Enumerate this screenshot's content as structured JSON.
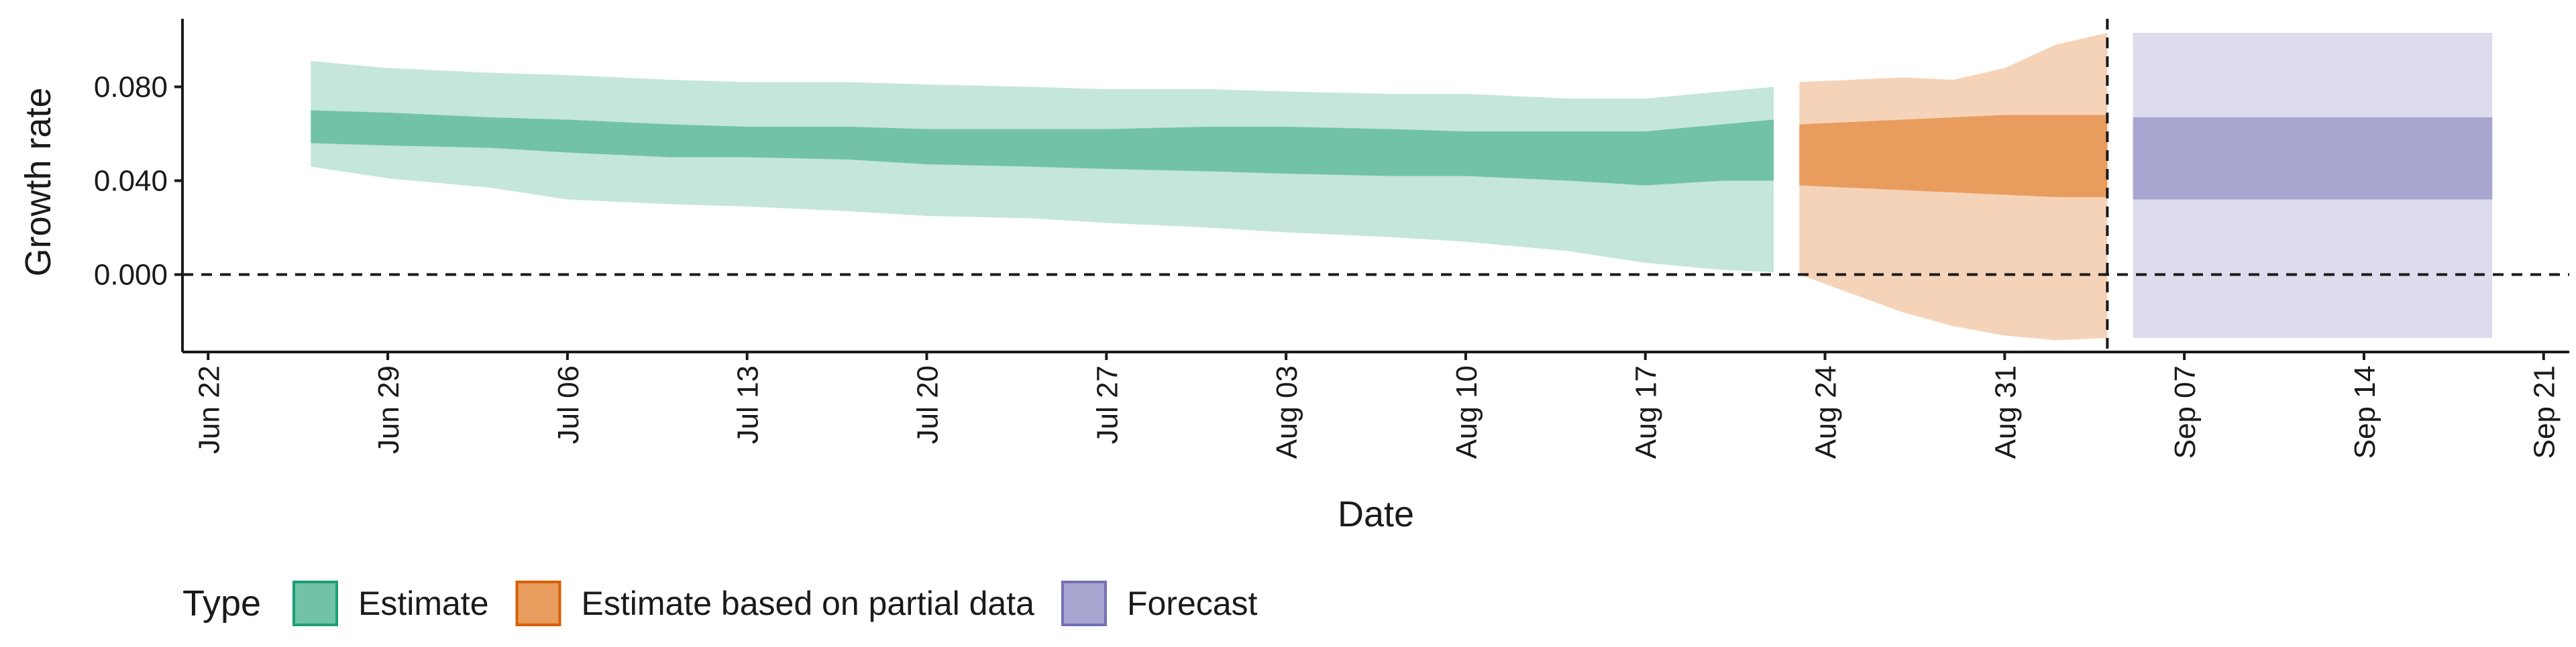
{
  "chart_data": {
    "type": "area",
    "title": "",
    "xlabel": "Date",
    "ylabel": "Growth rate",
    "x_range": [
      "2020-06-21",
      "2020-09-22"
    ],
    "ylim": [
      -0.033,
      0.109
    ],
    "y_ticks": [
      0.0,
      0.04,
      0.08
    ],
    "y_tick_labels": [
      "0.000",
      "0.040",
      "0.080"
    ],
    "x_ticks": [
      "2020-06-22",
      "2020-06-29",
      "2020-07-06",
      "2020-07-13",
      "2020-07-20",
      "2020-07-27",
      "2020-08-03",
      "2020-08-10",
      "2020-08-17",
      "2020-08-24",
      "2020-08-31",
      "2020-09-07",
      "2020-09-14",
      "2020-09-21"
    ],
    "x_tick_labels": [
      "Jun 22",
      "Jun 29",
      "Jul 06",
      "Jul 13",
      "Jul 20",
      "Jul 27",
      "Aug 03",
      "Aug 10",
      "Aug 17",
      "Aug 24",
      "Aug 31",
      "Sep 07",
      "Sep 14",
      "Sep 21"
    ],
    "hline": 0.0,
    "vline": "2020-09-04",
    "grid": false,
    "legend": {
      "title": "Type",
      "position": "bottom-left",
      "entries": [
        {
          "label": "Estimate",
          "fill": "#72c2a8",
          "border": "#1b9e77"
        },
        {
          "label": "Estimate based on partial data",
          "fill": "#e89c5e",
          "border": "#d95f02"
        },
        {
          "label": "Forecast",
          "fill": "#a8a6d0",
          "border": "#7570b3"
        }
      ]
    },
    "series": [
      {
        "name": "Estimate",
        "color_outer": "#c5e6da",
        "color_inner": "#72c2a8",
        "x": [
          "2020-06-26",
          "2020-06-29",
          "2020-07-03",
          "2020-07-06",
          "2020-07-10",
          "2020-07-13",
          "2020-07-17",
          "2020-07-20",
          "2020-07-24",
          "2020-07-27",
          "2020-07-31",
          "2020-08-03",
          "2020-08-07",
          "2020-08-10",
          "2020-08-14",
          "2020-08-17",
          "2020-08-20",
          "2020-08-22"
        ],
        "outer_upper": [
          0.091,
          0.088,
          0.086,
          0.085,
          0.083,
          0.082,
          0.082,
          0.081,
          0.08,
          0.079,
          0.079,
          0.078,
          0.077,
          0.077,
          0.075,
          0.075,
          0.078,
          0.08
        ],
        "inner_upper": [
          0.07,
          0.069,
          0.067,
          0.066,
          0.064,
          0.063,
          0.063,
          0.062,
          0.062,
          0.062,
          0.063,
          0.063,
          0.062,
          0.061,
          0.061,
          0.061,
          0.064,
          0.066
        ],
        "inner_lower": [
          0.056,
          0.055,
          0.054,
          0.052,
          0.05,
          0.05,
          0.049,
          0.047,
          0.046,
          0.045,
          0.044,
          0.043,
          0.042,
          0.042,
          0.04,
          0.038,
          0.04,
          0.04
        ],
        "outer_lower": [
          0.046,
          0.041,
          0.037,
          0.032,
          0.03,
          0.029,
          0.027,
          0.025,
          0.024,
          0.022,
          0.02,
          0.018,
          0.016,
          0.014,
          0.01,
          0.005,
          0.002,
          0.001
        ]
      },
      {
        "name": "Estimate based on partial data",
        "color_outer": "#f5d3b8",
        "color_inner": "#e89c5e",
        "x": [
          "2020-08-23",
          "2020-08-25",
          "2020-08-27",
          "2020-08-29",
          "2020-08-31",
          "2020-09-02",
          "2020-09-04"
        ],
        "outer_upper": [
          0.082,
          0.083,
          0.084,
          0.083,
          0.088,
          0.098,
          0.103
        ],
        "inner_upper": [
          0.064,
          0.065,
          0.066,
          0.067,
          0.068,
          0.068,
          0.068
        ],
        "inner_lower": [
          0.038,
          0.037,
          0.036,
          0.035,
          0.034,
          0.033,
          0.033
        ],
        "outer_lower": [
          0.0,
          -0.008,
          -0.016,
          -0.022,
          -0.026,
          -0.028,
          -0.027
        ]
      },
      {
        "name": "Forecast",
        "color_outer": "#dcdced",
        "color_inner": "#a8a6d0",
        "x": [
          "2020-09-05",
          "2020-09-19"
        ],
        "outer_upper": [
          0.103,
          0.103
        ],
        "inner_upper": [
          0.067,
          0.067
        ],
        "inner_lower": [
          0.032,
          0.032
        ],
        "outer_lower": [
          -0.027,
          -0.027
        ]
      }
    ]
  }
}
